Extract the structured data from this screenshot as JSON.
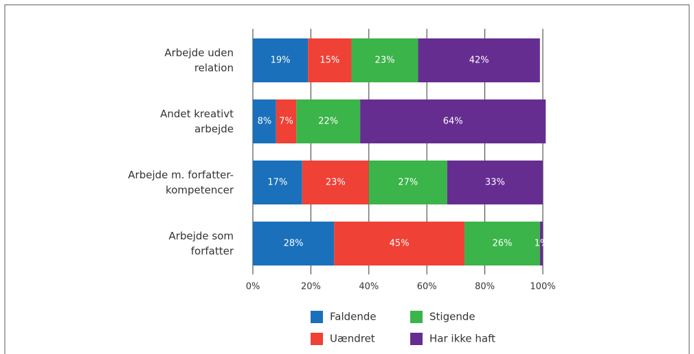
{
  "chart_data": {
    "type": "stacked_bar_horizontal",
    "categories": [
      [
        "Arbejde uden",
        "relation"
      ],
      [
        "Andet kreativt",
        "arbejde"
      ],
      [
        "Arbejde m. forfatter-",
        "kompetencer"
      ],
      [
        "Arbejde som",
        "forfatter"
      ]
    ],
    "series": [
      {
        "name": "Faldende",
        "color": "#1a70bb",
        "values": [
          19,
          8,
          17,
          28
        ],
        "value_labels": [
          "19%",
          "8%",
          "17%",
          "28%"
        ]
      },
      {
        "name": "Uændret",
        "color": "#ef4136",
        "values": [
          15,
          7,
          23,
          45
        ],
        "value_labels": [
          "15%",
          "7%",
          "23%",
          "45%"
        ]
      },
      {
        "name": "Stigende",
        "color": "#3bb44a",
        "values": [
          23,
          22,
          27,
          26
        ],
        "value_labels": [
          "23%",
          "22%",
          "27%",
          "26%"
        ]
      },
      {
        "name": "Har ikke haft",
        "color": "#662d91",
        "values": [
          42,
          64,
          33,
          1
        ],
        "value_labels": [
          "42%",
          "64%",
          "33%",
          "1%"
        ]
      }
    ],
    "xlim": [
      0,
      100
    ],
    "xticks": [
      {
        "value": 0,
        "label": "0%"
      },
      {
        "value": 20,
        "label": "20%"
      },
      {
        "value": 40,
        "label": "40%"
      },
      {
        "value": 60,
        "label": "60%"
      },
      {
        "value": 80,
        "label": "80%"
      },
      {
        "value": 100,
        "label": "100%"
      }
    ],
    "grid": true
  }
}
